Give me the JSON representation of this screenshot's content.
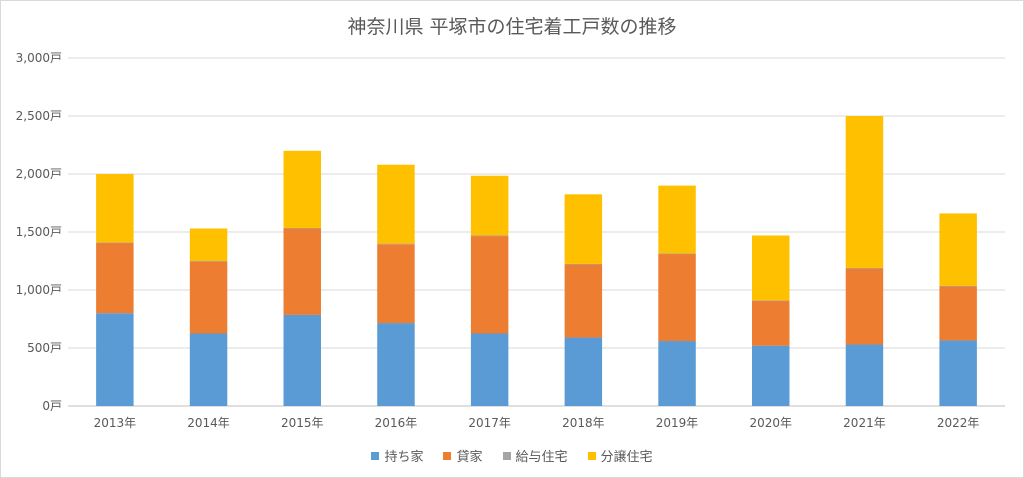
{
  "chart_data": {
    "type": "bar",
    "stacked": true,
    "title": "神奈川県 平塚市の住宅着工戸数の推移",
    "categories": [
      "2013年",
      "2014年",
      "2015年",
      "2016年",
      "2017年",
      "2018年",
      "2019年",
      "2020年",
      "2021年",
      "2022年"
    ],
    "y_ticks": [
      "0戸",
      "500戸",
      "1,000戸",
      "1,500戸",
      "2,000戸",
      "2,500戸",
      "3,000戸"
    ],
    "ylim": [
      0,
      3000
    ],
    "grid": true,
    "legend_position": "bottom",
    "series": [
      {
        "name": "持ち家",
        "color": "#5b9bd5",
        "values": [
          800,
          625,
          785,
          715,
          625,
          590,
          560,
          520,
          530,
          565
        ]
      },
      {
        "name": "貸家",
        "color": "#ed7d31",
        "values": [
          605,
          620,
          745,
          680,
          840,
          630,
          750,
          385,
          655,
          465
        ]
      },
      {
        "name": "給与住宅",
        "color": "#a5a5a5",
        "values": [
          5,
          5,
          5,
          5,
          5,
          5,
          5,
          5,
          5,
          5
        ]
      },
      {
        "name": "分譲住宅",
        "color": "#ffc000",
        "values": [
          590,
          280,
          665,
          680,
          515,
          600,
          585,
          560,
          1310,
          625
        ]
      }
    ]
  }
}
